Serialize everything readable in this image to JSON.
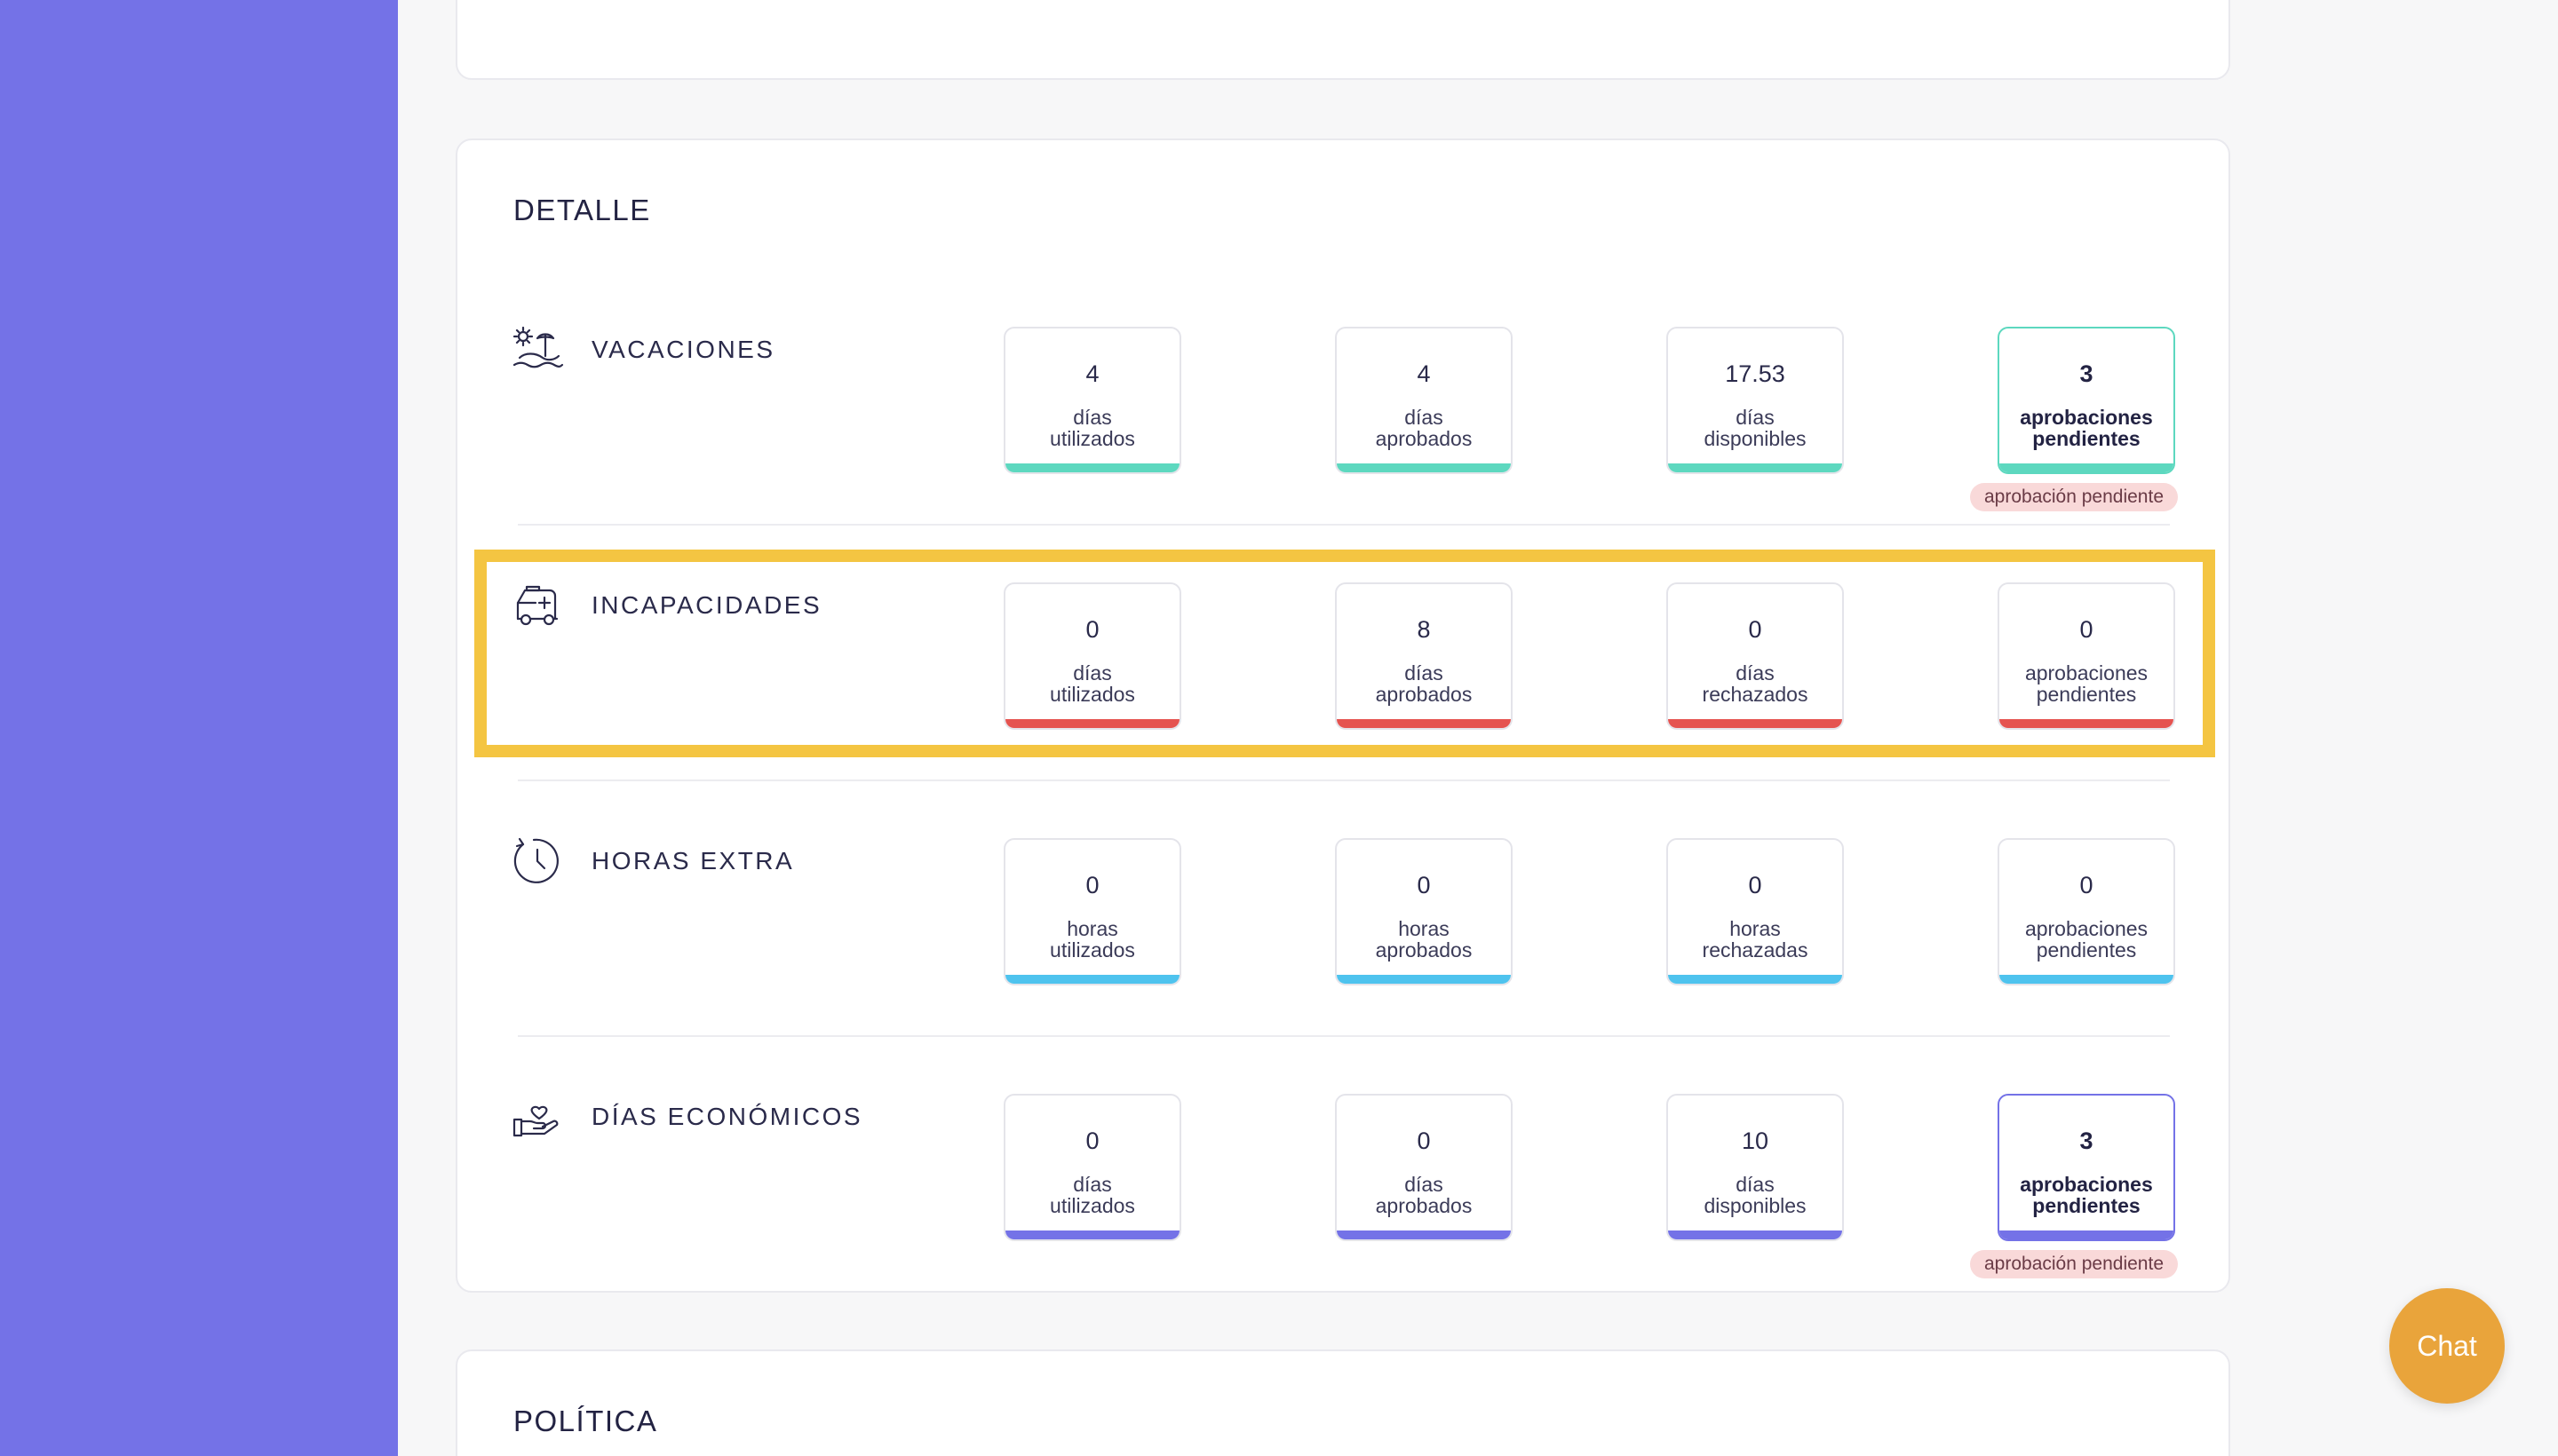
{
  "colors": {
    "sidebar": "#7472e7",
    "vacaciones_bar": "#5dd8bf",
    "incapacidades_bar": "#e55350",
    "horas_extra_bar": "#4ec3ee",
    "dias_economicos_bar": "#7472e7",
    "highlight": "#f4c542",
    "pending_pill_bg": "#f9d9d9",
    "chat_button": "#e9a43b"
  },
  "detalle": {
    "title": "DETALLE",
    "rows": [
      {
        "label": "VACACIONES",
        "icon": "beach-icon",
        "stats": [
          {
            "value": "4",
            "line1": "días",
            "line2": "utilizados"
          },
          {
            "value": "4",
            "line1": "días",
            "line2": "aprobados"
          },
          {
            "value": "17.53",
            "line1": "días",
            "line2": "disponibles"
          },
          {
            "value": "3",
            "line1": "aprobaciones",
            "line2": "pendientes"
          }
        ],
        "pending_badge": "aprobación pendiente"
      },
      {
        "label": "INCAPACIDADES",
        "icon": "ambulance-icon",
        "stats": [
          {
            "value": "0",
            "line1": "días",
            "line2": "utilizados"
          },
          {
            "value": "8",
            "line1": "días",
            "line2": "aprobados"
          },
          {
            "value": "0",
            "line1": "días",
            "line2": "rechazados"
          },
          {
            "value": "0",
            "line1": "aprobaciones",
            "line2": "pendientes"
          }
        ]
      },
      {
        "label": "HORAS EXTRA",
        "icon": "clock-icon",
        "stats": [
          {
            "value": "0",
            "line1": "horas",
            "line2": "utilizados"
          },
          {
            "value": "0",
            "line1": "horas",
            "line2": "aprobados"
          },
          {
            "value": "0",
            "line1": "horas",
            "line2": "rechazadas"
          },
          {
            "value": "0",
            "line1": "aprobaciones",
            "line2": "pendientes"
          }
        ]
      },
      {
        "label": "DÍAS ECONÓMICOS",
        "icon": "hand-heart-icon",
        "stats": [
          {
            "value": "0",
            "line1": "días",
            "line2": "utilizados"
          },
          {
            "value": "0",
            "line1": "días",
            "line2": "aprobados"
          },
          {
            "value": "10",
            "line1": "días",
            "line2": "disponibles"
          },
          {
            "value": "3",
            "line1": "aprobaciones",
            "line2": "pendientes"
          }
        ],
        "pending_badge": "aprobación pendiente"
      }
    ]
  },
  "politica": {
    "title": "POLÍTICA"
  },
  "chat": {
    "label": "Chat"
  }
}
